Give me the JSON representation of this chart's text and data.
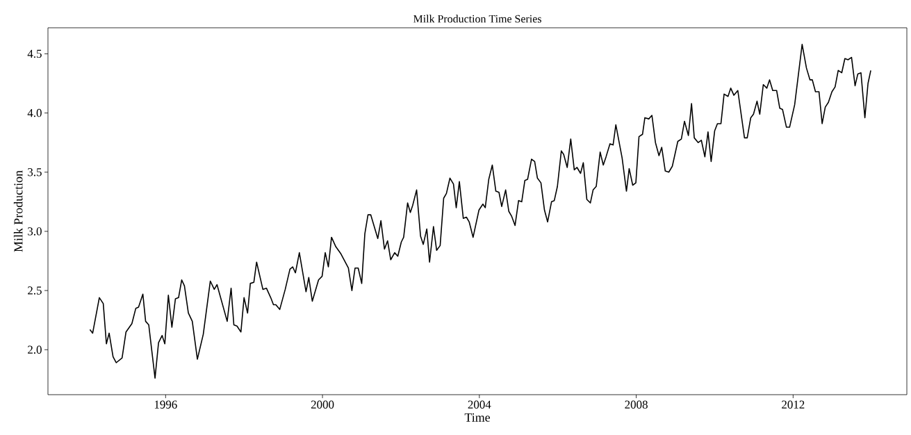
{
  "chart_data": {
    "type": "line",
    "title": "Milk Production Time Series",
    "xlabel": "Time",
    "ylabel": "Milk Production",
    "color": "#000000",
    "x": [
      1994.07,
      1994.14,
      1994.31,
      1994.41,
      1994.49,
      1994.56,
      1994.66,
      1994.74,
      1994.89,
      1994.99,
      1995.14,
      1995.24,
      1995.31,
      1995.42,
      1995.49,
      1995.57,
      1995.73,
      1995.82,
      1995.91,
      1995.98,
      1996.07,
      1996.16,
      1996.25,
      1996.33,
      1996.41,
      1996.48,
      1996.58,
      1996.68,
      1996.81,
      1996.96,
      1997.14,
      1997.24,
      1997.31,
      1997.57,
      1997.67,
      1997.74,
      1997.82,
      1997.92,
      1998.0,
      1998.09,
      1998.16,
      1998.25,
      1998.32,
      1998.48,
      1998.57,
      1998.68,
      1998.75,
      1998.81,
      1998.91,
      1999.05,
      1999.17,
      1999.24,
      1999.31,
      1999.41,
      1999.58,
      1999.65,
      1999.74,
      1999.9,
      1999.99,
      2000.07,
      2000.15,
      2000.23,
      2000.34,
      2000.47,
      2000.66,
      2000.75,
      2000.83,
      2000.91,
      2001.0,
      2001.08,
      2001.16,
      2001.23,
      2001.41,
      2001.49,
      2001.58,
      2001.66,
      2001.74,
      2001.84,
      2001.92,
      2002.01,
      2002.07,
      2002.17,
      2002.24,
      2002.3,
      2002.4,
      2002.5,
      2002.57,
      2002.66,
      2002.73,
      2002.83,
      2002.91,
      2003.0,
      2003.09,
      2003.16,
      2003.25,
      2003.34,
      2003.41,
      2003.49,
      2003.59,
      2003.67,
      2003.74,
      2003.84,
      2003.99,
      2004.09,
      2004.15,
      2004.24,
      2004.33,
      2004.42,
      2004.5,
      2004.57,
      2004.67,
      2004.75,
      2004.82,
      2004.91,
      2005.0,
      2005.08,
      2005.16,
      2005.23,
      2005.33,
      2005.41,
      2005.48,
      2005.57,
      2005.66,
      2005.74,
      2005.84,
      2005.91,
      2005.99,
      2006.09,
      2006.15,
      2006.24,
      2006.33,
      2006.42,
      2006.49,
      2006.58,
      2006.65,
      2006.74,
      2006.83,
      2006.9,
      2006.98,
      2007.08,
      2007.16,
      2007.23,
      2007.33,
      2007.41,
      2007.48,
      2007.64,
      2007.75,
      2007.82,
      2007.91,
      2007.99,
      2008.07,
      2008.16,
      2008.22,
      2008.32,
      2008.4,
      2008.49,
      2008.58,
      2008.65,
      2008.74,
      2008.83,
      2008.92,
      2009.06,
      2009.15,
      2009.23,
      2009.33,
      2009.41,
      2009.48,
      2009.58,
      2009.66,
      2009.75,
      2009.83,
      2009.91,
      2010.0,
      2010.07,
      2010.16,
      2010.24,
      2010.34,
      2010.41,
      2010.49,
      2010.59,
      2010.76,
      2010.83,
      2010.92,
      2010.99,
      2011.08,
      2011.15,
      2011.24,
      2011.33,
      2011.4,
      2011.48,
      2011.58,
      2011.66,
      2011.73,
      2011.83,
      2011.91,
      2012.04,
      2012.23,
      2012.34,
      2012.43,
      2012.49,
      2012.57,
      2012.66,
      2012.74,
      2012.82,
      2012.9,
      2012.99,
      2013.07,
      2013.15,
      2013.24,
      2013.32,
      2013.4,
      2013.49,
      2013.58,
      2013.65,
      2013.73,
      2013.83,
      2013.91,
      2013.98
    ],
    "values": [
      2.17,
      2.14,
      2.44,
      2.39,
      2.05,
      2.14,
      1.94,
      1.89,
      1.93,
      2.15,
      2.22,
      2.35,
      2.36,
      2.47,
      2.24,
      2.21,
      1.76,
      2.06,
      2.12,
      2.05,
      2.46,
      2.19,
      2.43,
      2.44,
      2.59,
      2.54,
      2.31,
      2.24,
      1.92,
      2.13,
      2.58,
      2.51,
      2.55,
      2.24,
      2.52,
      2.21,
      2.2,
      2.15,
      2.44,
      2.31,
      2.56,
      2.57,
      2.74,
      2.51,
      2.52,
      2.44,
      2.38,
      2.38,
      2.34,
      2.51,
      2.68,
      2.7,
      2.65,
      2.82,
      2.49,
      2.61,
      2.41,
      2.59,
      2.62,
      2.82,
      2.7,
      2.95,
      2.87,
      2.81,
      2.69,
      2.5,
      2.69,
      2.69,
      2.56,
      2.98,
      3.14,
      3.14,
      2.94,
      3.09,
      2.85,
      2.92,
      2.76,
      2.82,
      2.79,
      2.91,
      2.95,
      3.24,
      3.16,
      3.22,
      3.35,
      2.96,
      2.89,
      3.02,
      2.74,
      3.04,
      2.84,
      2.88,
      3.28,
      3.32,
      3.45,
      3.4,
      3.2,
      3.42,
      3.11,
      3.12,
      3.08,
      2.95,
      3.18,
      3.23,
      3.2,
      3.44,
      3.56,
      3.34,
      3.33,
      3.21,
      3.35,
      3.17,
      3.13,
      3.05,
      3.26,
      3.25,
      3.43,
      3.44,
      3.61,
      3.59,
      3.45,
      3.41,
      3.18,
      3.08,
      3.25,
      3.26,
      3.38,
      3.68,
      3.65,
      3.54,
      3.78,
      3.52,
      3.54,
      3.49,
      3.58,
      3.27,
      3.24,
      3.35,
      3.38,
      3.67,
      3.56,
      3.63,
      3.74,
      3.73,
      3.9,
      3.62,
      3.34,
      3.53,
      3.39,
      3.41,
      3.8,
      3.82,
      3.96,
      3.95,
      3.98,
      3.75,
      3.64,
      3.71,
      3.51,
      3.5,
      3.55,
      3.76,
      3.78,
      3.93,
      3.81,
      4.08,
      3.79,
      3.75,
      3.77,
      3.63,
      3.84,
      3.59,
      3.85,
      3.91,
      3.91,
      4.16,
      4.14,
      4.21,
      4.15,
      4.19,
      3.79,
      3.79,
      3.96,
      3.99,
      4.1,
      3.99,
      4.24,
      4.21,
      4.28,
      4.19,
      4.19,
      4.04,
      4.03,
      3.88,
      3.88,
      4.07,
      4.58,
      4.38,
      4.28,
      4.28,
      4.18,
      4.18,
      3.91,
      4.05,
      4.09,
      4.18,
      4.22,
      4.36,
      4.34,
      4.46,
      4.45,
      4.47,
      4.23,
      4.33,
      4.34,
      3.96,
      4.25,
      4.36
    ],
    "xlim": [
      1993.0,
      2014.9
    ],
    "ylim": [
      1.62,
      4.72
    ],
    "xticks": [
      1996,
      2000,
      2004,
      2008,
      2012
    ],
    "yticks": [
      {
        "value": 2,
        "label": "2.0"
      },
      {
        "value": 2.5,
        "label": "2.5"
      },
      {
        "value": 3,
        "label": "3.0"
      },
      {
        "value": 3.5,
        "label": "3.5"
      },
      {
        "value": 4,
        "label": "4.0"
      },
      {
        "value": 4.5,
        "label": "4.5"
      }
    ]
  }
}
